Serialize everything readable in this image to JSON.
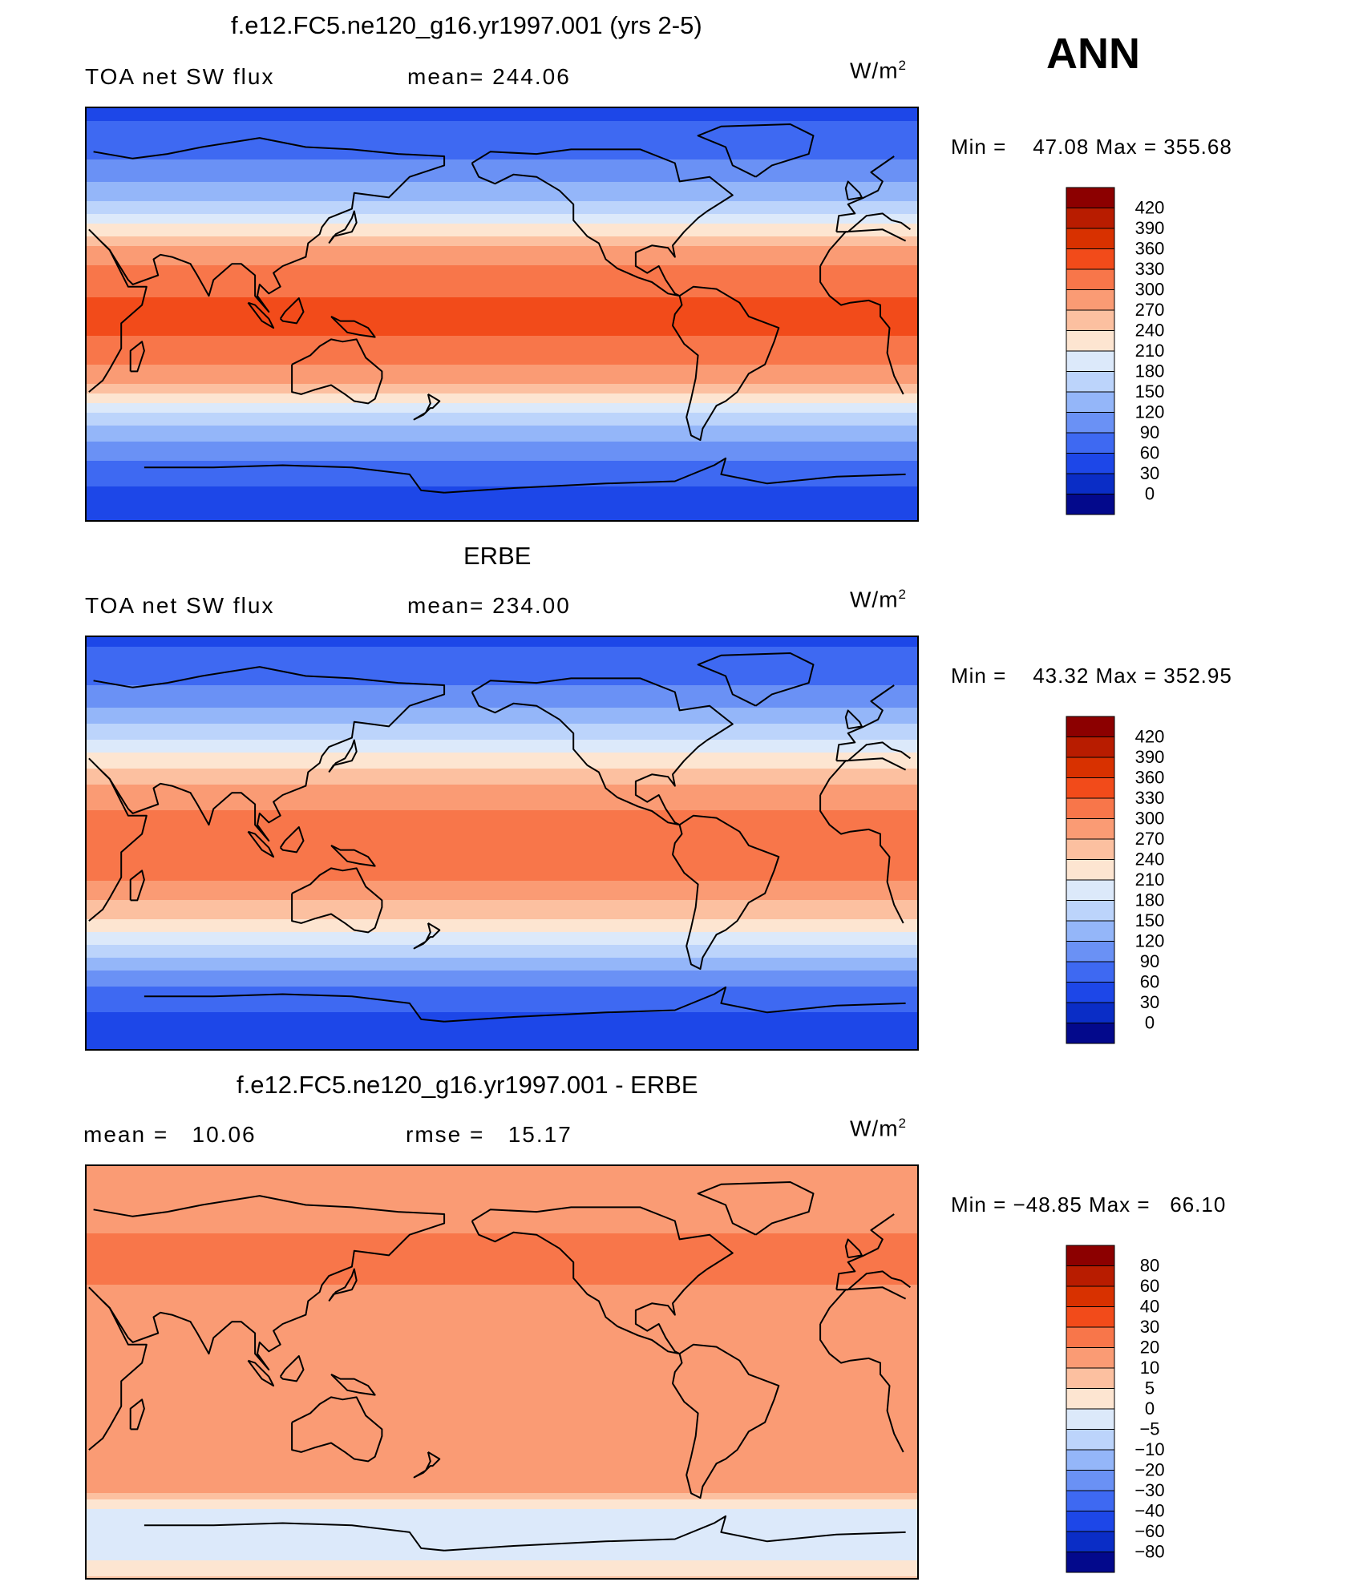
{
  "panel1": {
    "title": "f.e12.FC5.ne120_g16.yr1997.001 (yrs 2-5)",
    "label": "TOA net SW flux",
    "mean_text": "mean= 244.06",
    "units": "W/m",
    "units_sup": "2",
    "min_label": "Min =",
    "min_value": "47.08",
    "max_label": "Max =",
    "max_value": "355.68"
  },
  "season": "ANN",
  "panel2": {
    "title": "ERBE",
    "label": "TOA net SW flux",
    "mean_text": "mean= 234.00",
    "units": "W/m",
    "units_sup": "2",
    "min_label": "Min =",
    "min_value": "43.32",
    "max_label": "Max =",
    "max_value": "352.95"
  },
  "panel3": {
    "title": "f.e12.FC5.ne120_g16.yr1997.001 - ERBE",
    "mean_label": "mean =",
    "mean_value": "10.06",
    "rmse_label": "rmse =",
    "rmse_value": "15.17",
    "units": "W/m",
    "units_sup": "2",
    "min_label": "Min =",
    "min_value": "−48.85",
    "max_label": "Max =",
    "max_value": "66.10"
  },
  "chart_data": [
    {
      "type": "heatmap",
      "title": "f.e12.FC5.ne120_g16.yr1997.001 (yrs 2-5)",
      "variable": "TOA net SW flux",
      "units": "W/m2",
      "mean": 244.06,
      "min": 47.08,
      "max": 355.68,
      "zonal_profile": {
        "lat": [
          90,
          75,
          60,
          45,
          30,
          15,
          0,
          -15,
          -30,
          -45,
          -60,
          -75,
          -90
        ],
        "value": [
          55,
          70,
          110,
          170,
          270,
          320,
          340,
          325,
          270,
          170,
          100,
          60,
          40
        ]
      },
      "colorbar": {
        "levels": [
          "420",
          "390",
          "360",
          "330",
          "300",
          "270",
          "240",
          "210",
          "180",
          "150",
          "120",
          "90",
          "60",
          "30",
          "0"
        ],
        "colors": [
          "#8c0000",
          "#b81c00",
          "#d83100",
          "#f24b1a",
          "#f8764a",
          "#fa9b74",
          "#fcc0a0",
          "#fde5d1",
          "#dce9fa",
          "#bcd4fb",
          "#94b6f9",
          "#6a91f5",
          "#3e69f2",
          "#1d47e8",
          "#0a2dc6",
          "#03098c"
        ]
      }
    },
    {
      "type": "heatmap",
      "title": "ERBE",
      "variable": "TOA net SW flux",
      "units": "W/m2",
      "mean": 234.0,
      "min": 43.32,
      "max": 352.95,
      "zonal_profile": {
        "lat": [
          90,
          75,
          60,
          45,
          30,
          15,
          0,
          -15,
          -30,
          -45,
          -60,
          -75,
          -90
        ],
        "value": [
          55,
          75,
          115,
          180,
          255,
          300,
          320,
          305,
          255,
          180,
          100,
          55,
          40
        ]
      },
      "colorbar": {
        "levels": [
          "420",
          "390",
          "360",
          "330",
          "300",
          "270",
          "240",
          "210",
          "180",
          "150",
          "120",
          "90",
          "60",
          "30",
          "0"
        ],
        "colors": [
          "#8c0000",
          "#b81c00",
          "#d83100",
          "#f24b1a",
          "#f8764a",
          "#fa9b74",
          "#fcc0a0",
          "#fde5d1",
          "#dce9fa",
          "#bcd4fb",
          "#94b6f9",
          "#6a91f5",
          "#3e69f2",
          "#1d47e8",
          "#0a2dc6",
          "#03098c"
        ]
      }
    },
    {
      "type": "heatmap",
      "title": "f.e12.FC5.ne120_g16.yr1997.001 - ERBE",
      "variable": "TOA net SW flux difference",
      "units": "W/m2",
      "mean": 10.06,
      "rmse": 15.17,
      "min": -48.85,
      "max": 66.1,
      "zonal_profile": {
        "lat": [
          90,
          75,
          60,
          45,
          30,
          15,
          0,
          -15,
          -30,
          -45,
          -60,
          -75,
          -90
        ],
        "value": [
          10,
          15,
          20,
          25,
          15,
          10,
          12,
          15,
          10,
          20,
          0,
          -5,
          5
        ]
      },
      "colorbar": {
        "levels": [
          "80",
          "60",
          "40",
          "30",
          "20",
          "10",
          "5",
          "0",
          "−5",
          "−10",
          "−20",
          "−30",
          "−40",
          "−60",
          "−80"
        ],
        "colors": [
          "#8c0000",
          "#b81c00",
          "#d83100",
          "#f24b1a",
          "#f8764a",
          "#fa9b74",
          "#fcc0a0",
          "#fde5d1",
          "#dce9fa",
          "#bcd4fb",
          "#94b6f9",
          "#6a91f5",
          "#3e69f2",
          "#1d47e8",
          "#0a2dc6",
          "#03098c"
        ]
      }
    }
  ]
}
